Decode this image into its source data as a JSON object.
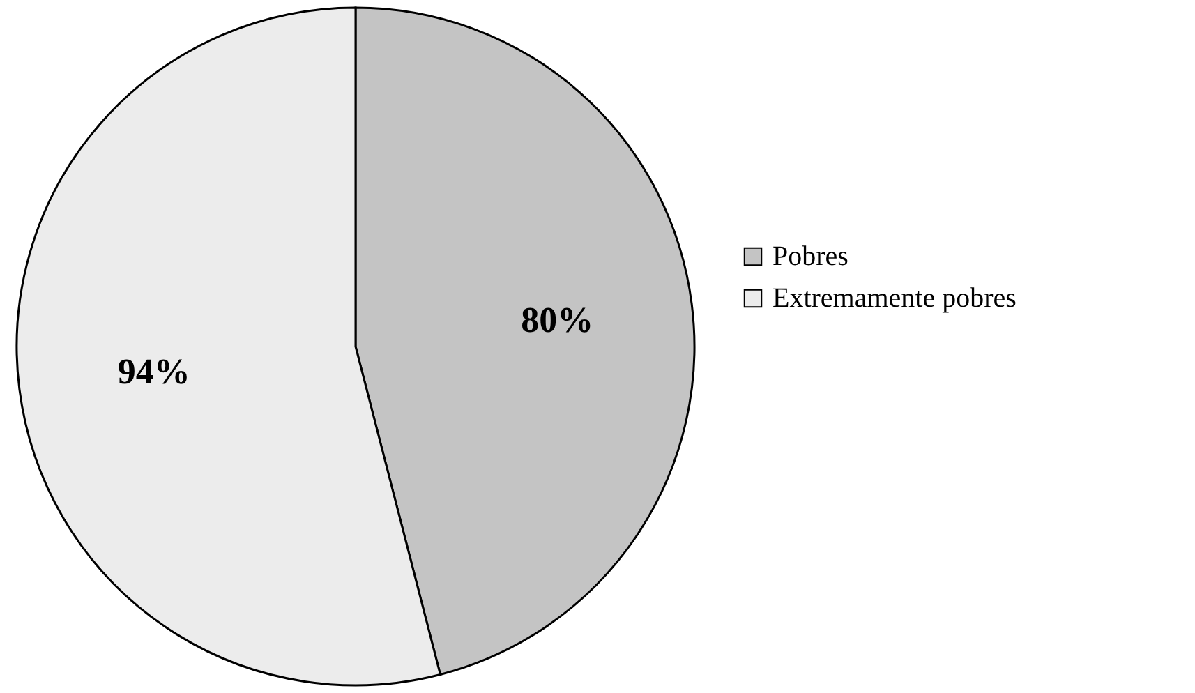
{
  "chart_data": {
    "type": "pie",
    "categories": [
      "Pobres",
      "Extremamente pobres"
    ],
    "values": [
      80,
      94
    ],
    "value_labels": [
      "80%",
      "94%"
    ],
    "colors": [
      "#c4c4c4",
      "#ececec"
    ],
    "legend": "right"
  }
}
